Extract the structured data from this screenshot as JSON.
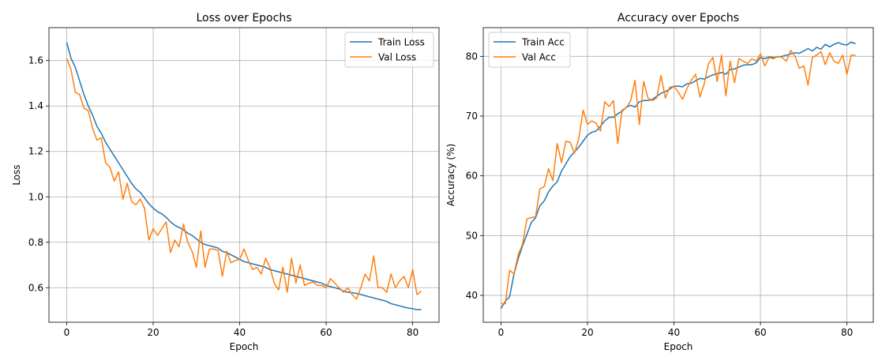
{
  "chart_data": [
    {
      "type": "line",
      "title": "Loss over Epochs",
      "xlabel": "Epoch",
      "ylabel": "Loss",
      "xlim": [
        -4.1,
        86.1
      ],
      "ylim": [
        0.448,
        1.745
      ],
      "xticks": [
        0,
        20,
        40,
        60,
        80
      ],
      "yticks": [
        0.6,
        0.8,
        1.0,
        1.2,
        1.4,
        1.6
      ],
      "ytick_labels": [
        "0.6",
        "0.8",
        "1.0",
        "1.2",
        "1.4",
        "1.6"
      ],
      "grid": true,
      "legend_position": "top-right",
      "series": [
        {
          "name": "Train Loss",
          "color": "#1f77b4",
          "x": [
            0,
            1,
            2,
            3,
            4,
            5,
            6,
            7,
            8,
            9,
            10,
            11,
            12,
            13,
            14,
            15,
            16,
            17,
            18,
            19,
            20,
            21,
            22,
            23,
            24,
            25,
            26,
            27,
            28,
            29,
            30,
            31,
            32,
            33,
            34,
            35,
            36,
            37,
            38,
            39,
            40,
            41,
            42,
            43,
            44,
            45,
            46,
            47,
            48,
            49,
            50,
            51,
            52,
            53,
            54,
            55,
            56,
            57,
            58,
            59,
            60,
            61,
            62,
            63,
            64,
            65,
            66,
            67,
            68,
            69,
            70,
            71,
            72,
            73,
            74,
            75,
            76,
            77,
            78,
            79,
            80,
            81,
            82
          ],
          "y": [
            1.68,
            1.61,
            1.57,
            1.51,
            1.45,
            1.4,
            1.36,
            1.31,
            1.28,
            1.24,
            1.21,
            1.18,
            1.15,
            1.12,
            1.09,
            1.06,
            1.035,
            1.02,
            0.995,
            0.97,
            0.95,
            0.935,
            0.925,
            0.91,
            0.89,
            0.875,
            0.865,
            0.855,
            0.84,
            0.83,
            0.815,
            0.8,
            0.79,
            0.785,
            0.78,
            0.775,
            0.76,
            0.755,
            0.745,
            0.735,
            0.725,
            0.715,
            0.71,
            0.705,
            0.7,
            0.695,
            0.69,
            0.68,
            0.675,
            0.67,
            0.665,
            0.66,
            0.655,
            0.65,
            0.645,
            0.64,
            0.635,
            0.63,
            0.625,
            0.62,
            0.61,
            0.605,
            0.6,
            0.595,
            0.585,
            0.58,
            0.578,
            0.575,
            0.57,
            0.565,
            0.56,
            0.555,
            0.55,
            0.545,
            0.54,
            0.53,
            0.525,
            0.52,
            0.515,
            0.51,
            0.508,
            0.503,
            0.505
          ]
        },
        {
          "name": "Val Loss",
          "color": "#ff7f0e",
          "x": [
            0,
            1,
            2,
            3,
            4,
            5,
            6,
            7,
            8,
            9,
            10,
            11,
            12,
            13,
            14,
            15,
            16,
            17,
            18,
            19,
            20,
            21,
            22,
            23,
            24,
            25,
            26,
            27,
            28,
            29,
            30,
            31,
            32,
            33,
            34,
            35,
            36,
            37,
            38,
            39,
            40,
            41,
            42,
            43,
            44,
            45,
            46,
            47,
            48,
            49,
            50,
            51,
            52,
            53,
            54,
            55,
            56,
            57,
            58,
            59,
            60,
            61,
            62,
            63,
            64,
            65,
            66,
            67,
            68,
            69,
            70,
            71,
            72,
            73,
            74,
            75,
            76,
            77,
            78,
            79,
            80,
            81,
            82
          ],
          "y": [
            1.61,
            1.56,
            1.46,
            1.45,
            1.39,
            1.38,
            1.3,
            1.25,
            1.26,
            1.15,
            1.13,
            1.07,
            1.11,
            0.99,
            1.06,
            0.98,
            0.965,
            0.99,
            0.95,
            0.81,
            0.86,
            0.83,
            0.86,
            0.89,
            0.755,
            0.81,
            0.78,
            0.88,
            0.8,
            0.76,
            0.69,
            0.85,
            0.69,
            0.77,
            0.77,
            0.765,
            0.65,
            0.76,
            0.71,
            0.72,
            0.725,
            0.77,
            0.72,
            0.68,
            0.69,
            0.66,
            0.73,
            0.69,
            0.62,
            0.59,
            0.69,
            0.58,
            0.73,
            0.62,
            0.7,
            0.61,
            0.62,
            0.625,
            0.61,
            0.61,
            0.6,
            0.64,
            0.62,
            0.6,
            0.58,
            0.6,
            0.57,
            0.55,
            0.6,
            0.66,
            0.63,
            0.74,
            0.6,
            0.6,
            0.58,
            0.66,
            0.6,
            0.63,
            0.65,
            0.6,
            0.68,
            0.57,
            0.585
          ]
        }
      ]
    },
    {
      "type": "line",
      "title": "Accuracy over Epochs",
      "xlabel": "Epoch",
      "ylabel": "Accuracy (%)",
      "xlim": [
        -4.1,
        86.1
      ],
      "ylim": [
        35.5,
        84.8
      ],
      "xticks": [
        0,
        20,
        40,
        60,
        80
      ],
      "yticks": [
        40,
        50,
        60,
        70,
        80
      ],
      "ytick_labels": [
        "40",
        "50",
        "60",
        "70",
        "80"
      ],
      "grid": true,
      "legend_position": "top-left",
      "series": [
        {
          "name": "Train Acc",
          "color": "#1f77b4",
          "x": [
            0,
            1,
            2,
            3,
            4,
            5,
            6,
            7,
            8,
            9,
            10,
            11,
            12,
            13,
            14,
            15,
            16,
            17,
            18,
            19,
            20,
            21,
            22,
            23,
            24,
            25,
            26,
            27,
            28,
            29,
            30,
            31,
            32,
            33,
            34,
            35,
            36,
            37,
            38,
            39,
            40,
            41,
            42,
            43,
            44,
            45,
            46,
            47,
            48,
            49,
            50,
            51,
            52,
            53,
            54,
            55,
            56,
            57,
            58,
            59,
            60,
            61,
            62,
            63,
            64,
            65,
            66,
            67,
            68,
            69,
            70,
            71,
            72,
            73,
            74,
            75,
            76,
            77,
            78,
            79,
            80,
            81,
            82
          ],
          "y": [
            37.8,
            39.0,
            39.8,
            43.5,
            46.2,
            48.3,
            50.2,
            52.2,
            53.0,
            55.0,
            55.8,
            57.3,
            58.3,
            59.0,
            60.8,
            62.0,
            63.2,
            64.0,
            64.8,
            65.8,
            66.8,
            67.3,
            67.5,
            68.3,
            69.2,
            69.8,
            69.8,
            70.4,
            70.8,
            71.5,
            71.8,
            71.5,
            72.4,
            72.6,
            72.6,
            72.8,
            73.3,
            73.8,
            74.1,
            74.5,
            75.0,
            75.0,
            74.9,
            75.4,
            75.5,
            75.9,
            76.3,
            76.2,
            76.6,
            76.9,
            77.1,
            77.3,
            77.0,
            77.8,
            77.9,
            78.2,
            78.5,
            78.6,
            78.6,
            78.9,
            79.8,
            79.6,
            79.9,
            79.8,
            79.9,
            80.0,
            80.2,
            80.4,
            80.6,
            80.5,
            80.9,
            81.3,
            80.9,
            81.5,
            81.2,
            82.0,
            81.6,
            82.0,
            82.3,
            82.0,
            81.9,
            82.4,
            82.1
          ]
        },
        {
          "name": "Val Acc",
          "color": "#ff7f0e",
          "x": [
            0,
            1,
            2,
            3,
            4,
            5,
            6,
            7,
            8,
            9,
            10,
            11,
            12,
            13,
            14,
            15,
            16,
            17,
            18,
            19,
            20,
            21,
            22,
            23,
            24,
            25,
            26,
            27,
            28,
            29,
            30,
            31,
            32,
            33,
            34,
            35,
            36,
            37,
            38,
            39,
            40,
            41,
            42,
            43,
            44,
            45,
            46,
            47,
            48,
            49,
            50,
            51,
            52,
            53,
            54,
            55,
            56,
            57,
            58,
            59,
            60,
            61,
            62,
            63,
            64,
            65,
            66,
            67,
            68,
            69,
            70,
            71,
            72,
            73,
            74,
            75,
            76,
            77,
            78,
            79,
            80,
            81,
            82
          ],
          "y": [
            38.6,
            38.6,
            44.2,
            43.6,
            46.8,
            48.6,
            52.8,
            53.0,
            53.2,
            57.8,
            58.2,
            61.2,
            59.2,
            65.4,
            62.2,
            65.8,
            65.6,
            63.8,
            66.2,
            71.0,
            68.6,
            69.2,
            68.8,
            67.5,
            72.4,
            71.6,
            72.6,
            65.4,
            71.0,
            71.4,
            72.6,
            76.0,
            68.6,
            75.8,
            73.0,
            72.6,
            73.0,
            76.8,
            73.0,
            74.8,
            75.0,
            74.0,
            72.8,
            74.6,
            76.0,
            77.0,
            73.2,
            75.4,
            78.8,
            79.8,
            75.8,
            80.2,
            73.4,
            79.2,
            75.6,
            79.6,
            79.2,
            78.8,
            79.6,
            79.2,
            80.4,
            78.4,
            79.8,
            79.6,
            80.0,
            79.8,
            79.2,
            81.0,
            80.0,
            78.0,
            78.4,
            75.2,
            79.8,
            80.2,
            80.8,
            78.6,
            80.6,
            79.2,
            78.8,
            80.2,
            77.0,
            80.2,
            80.2
          ]
        }
      ]
    }
  ]
}
